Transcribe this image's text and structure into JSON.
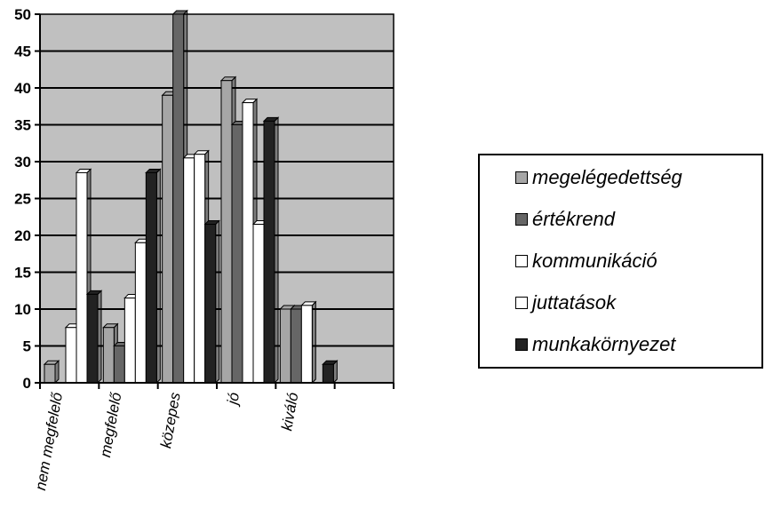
{
  "chart_data": {
    "type": "bar",
    "categories": [
      "nem megfelelő",
      "megfelelő",
      "közepes",
      "jó",
      "kiváló",
      ""
    ],
    "series": [
      {
        "name": "megelégedettség",
        "color": "#a6a6a6",
        "values": [
          2.5,
          7.5,
          39,
          41,
          10,
          0
        ]
      },
      {
        "name": "értékrend",
        "color": "#666666",
        "values": [
          0,
          5,
          50,
          35,
          10,
          0
        ]
      },
      {
        "name": "kommunikáció",
        "color": "#ffffff",
        "values": [
          7.5,
          11.5,
          30.5,
          38,
          10.5,
          0
        ]
      },
      {
        "name": "juttatások",
        "color": "#ffffff",
        "values": [
          28.5,
          19,
          31,
          21.5,
          0,
          0
        ]
      },
      {
        "name": "munkakörnyezet",
        "color": "#222222",
        "values": [
          12,
          28.5,
          21.5,
          35.5,
          2.5,
          0
        ]
      }
    ],
    "ylim": [
      0,
      50
    ],
    "yticks": [
      "0",
      "5",
      "10",
      "15",
      "20",
      "25",
      "30",
      "35",
      "40",
      "45",
      "50"
    ],
    "grid": true,
    "plot_background": "#c0c0c0",
    "legend_position": "right"
  }
}
